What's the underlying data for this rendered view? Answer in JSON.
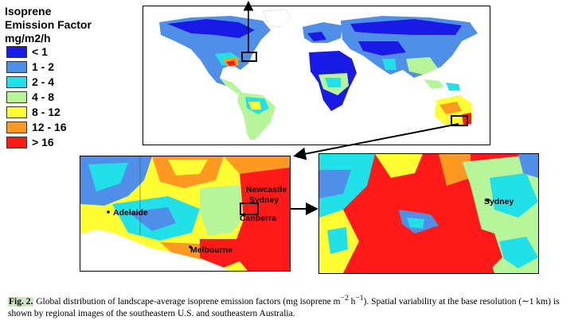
{
  "legend": {
    "title": "Isoprene\nEmission Factor\nmg/m2/h",
    "items": [
      {
        "label": "< 1",
        "color": "#1a1ae6"
      },
      {
        "label": "1 - 2",
        "color": "#4f8fe8"
      },
      {
        "label": "2 - 4",
        "color": "#22e0e8"
      },
      {
        "label": "4 - 8",
        "color": "#b6f59a"
      },
      {
        "label": "8 - 12",
        "color": "#ffff33"
      },
      {
        "label": "12 - 16",
        "color": "#ff9922"
      },
      {
        "label": "> 16",
        "color": "#ff1a1a"
      }
    ]
  },
  "cities": {
    "adelaide": "Adelaide",
    "melbourne": "Melbourne",
    "newcastle": "Newcastle",
    "sydney": "Sydney",
    "canberra": "Canberra",
    "sydney_zoom": "Sydney"
  },
  "caption": {
    "fig_label": "Fig. 2.",
    "text_1": " Global distribution of landscape-average isoprene emission factors (mg isoprene m",
    "sup_1": "−2",
    "text_2": " h",
    "sup_2": "−1",
    "text_3": "). Spatial variability at the base resolution (∼1 km) is shown by regional images of the southeastern U.S. and southeastern Australia."
  }
}
